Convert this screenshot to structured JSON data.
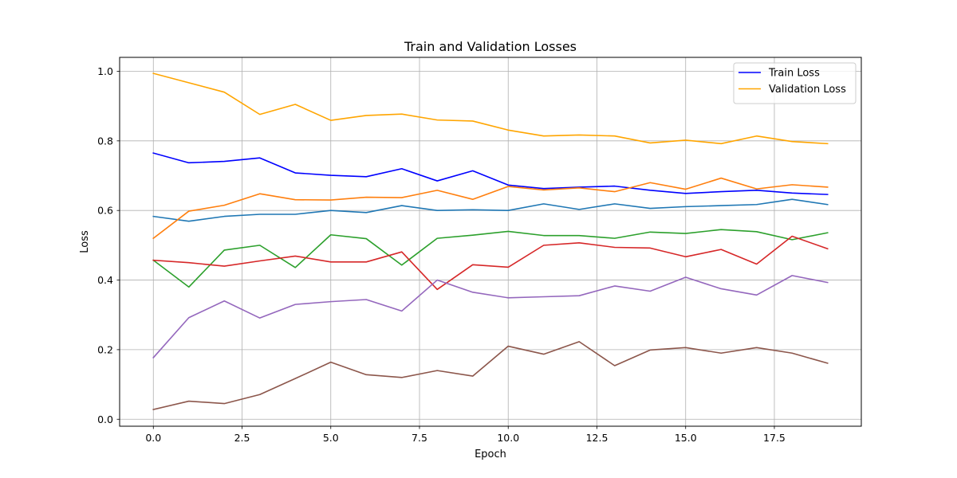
{
  "chart_data": {
    "type": "line",
    "title": "Train and Validation Losses",
    "xlabel": "Epoch",
    "ylabel": "Loss",
    "xlim": [
      -0.95,
      19.95
    ],
    "ylim": [
      -0.02,
      1.04
    ],
    "xticks": [
      "0.0",
      "2.5",
      "5.0",
      "7.5",
      "10.0",
      "12.5",
      "15.0",
      "17.5"
    ],
    "yticks": [
      "0.0",
      "0.2",
      "0.4",
      "0.6",
      "0.8",
      "1.0"
    ],
    "grid": true,
    "legend_position": "top-right",
    "x": [
      0,
      1,
      2,
      3,
      4,
      5,
      6,
      7,
      8,
      9,
      10,
      11,
      12,
      13,
      14,
      15,
      16,
      17,
      18,
      19
    ],
    "series": [
      {
        "name": "Train Loss",
        "color": "#0000ff",
        "values": [
          0.765,
          0.737,
          0.741,
          0.751,
          0.708,
          0.701,
          0.697,
          0.72,
          0.685,
          0.714,
          0.673,
          0.663,
          0.667,
          0.67,
          0.658,
          0.649,
          0.654,
          0.658,
          0.65,
          0.646
        ]
      },
      {
        "name": "Validation Loss",
        "color": "#ffa500",
        "values": [
          0.994,
          0.967,
          0.94,
          0.876,
          0.905,
          0.859,
          0.873,
          0.877,
          0.86,
          0.857,
          0.831,
          0.814,
          0.817,
          0.814,
          0.794,
          0.802,
          0.792,
          0.814,
          0.798,
          0.792
        ]
      },
      {
        "color": "#1f77b4",
        "values": [
          0.583,
          0.569,
          0.583,
          0.589,
          0.589,
          0.6,
          0.594,
          0.614,
          0.6,
          0.602,
          0.6,
          0.619,
          0.603,
          0.619,
          0.606,
          0.611,
          0.614,
          0.617,
          0.632,
          0.617
        ]
      },
      {
        "color": "#ff7f0e",
        "values": [
          0.52,
          0.598,
          0.615,
          0.648,
          0.631,
          0.63,
          0.638,
          0.637,
          0.658,
          0.632,
          0.669,
          0.659,
          0.665,
          0.654,
          0.68,
          0.661,
          0.693,
          0.662,
          0.674,
          0.667
        ]
      },
      {
        "color": "#2ca02c",
        "values": [
          0.457,
          0.38,
          0.486,
          0.5,
          0.436,
          0.53,
          0.519,
          0.443,
          0.52,
          0.529,
          0.54,
          0.528,
          0.528,
          0.52,
          0.538,
          0.534,
          0.545,
          0.539,
          0.516,
          0.536
        ]
      },
      {
        "color": "#d62728",
        "values": [
          0.457,
          0.45,
          0.44,
          0.455,
          0.469,
          0.452,
          0.452,
          0.481,
          0.373,
          0.444,
          0.437,
          0.5,
          0.507,
          0.494,
          0.492,
          0.467,
          0.488,
          0.446,
          0.526,
          0.49
        ]
      },
      {
        "color": "#9467bd",
        "values": [
          0.177,
          0.292,
          0.34,
          0.291,
          0.33,
          0.338,
          0.344,
          0.311,
          0.4,
          0.365,
          0.349,
          0.352,
          0.355,
          0.383,
          0.368,
          0.408,
          0.375,
          0.357,
          0.413,
          0.393
        ]
      },
      {
        "color": "#8c564b",
        "values": [
          0.028,
          0.052,
          0.045,
          0.071,
          0.117,
          0.164,
          0.128,
          0.12,
          0.14,
          0.124,
          0.21,
          0.187,
          0.223,
          0.154,
          0.199,
          0.206,
          0.19,
          0.206,
          0.19,
          0.161
        ]
      }
    ]
  }
}
